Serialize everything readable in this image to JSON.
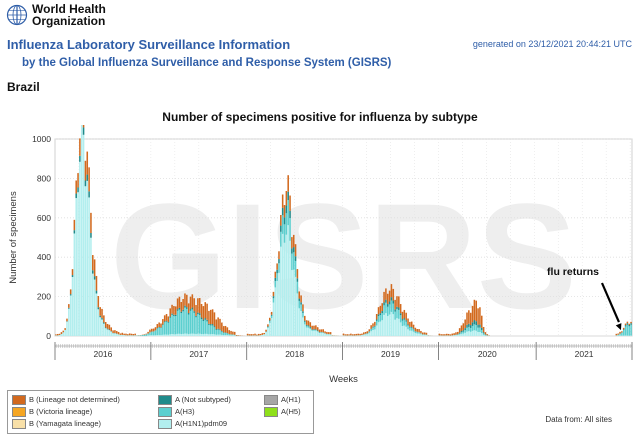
{
  "header": {
    "org_name_line1": "World Health",
    "org_name_line2": "Organization",
    "title": "Influenza Laboratory Surveillance Information",
    "subtitle": "by the Global Influenza Surveillance and Response System (GISRS)",
    "generated": "generated on 23/12/2021 20:44:21 UTC"
  },
  "country": "Brazil",
  "watermark": "GISRS",
  "annotation": {
    "text": "flu returns",
    "arrow": "pointing to the late-2021 peak"
  },
  "data_from": "Data from: All sites",
  "colors": {
    "b_lineage_not_determined": "#d2691e",
    "b_victoria": "#f5a623",
    "b_yamagata": "#f8e0a8",
    "a_not_subtyped": "#1f8a8a",
    "a_h3": "#5ccfcf",
    "a_h1n1pdm09": "#b2eeee",
    "a_h1": "#a6a6a6",
    "a_h5": "#8fe01a"
  },
  "legend": [
    {
      "label": "B (Lineage not determined)",
      "color": "#d2691e"
    },
    {
      "label": "B (Victoria lineage)",
      "color": "#f5a623"
    },
    {
      "label": "B (Yamagata lineage)",
      "color": "#f8e0a8"
    },
    {
      "label": "A (Not subtyped)",
      "color": "#1f8a8a"
    },
    {
      "label": "A(H3)",
      "color": "#5ccfcf"
    },
    {
      "label": "A(H1N1)pdm09",
      "color": "#b2eeee"
    },
    {
      "label": "A(H1)",
      "color": "#a6a6a6"
    },
    {
      "label": "A(H5)",
      "color": "#8fe01a"
    }
  ],
  "chart_data": {
    "type": "bar",
    "stacked": true,
    "title": "Number of specimens positive for influenza by subtype",
    "xlabel": "Weeks",
    "ylabel": "Number of specimens",
    "ylim": [
      0,
      1000
    ],
    "yticks": [
      0,
      200,
      400,
      600,
      800,
      1000
    ],
    "x_unit": "week index from start of 2016",
    "xlim": [
      0,
      313
    ],
    "year_labels": [
      {
        "label": "2016",
        "start": 0,
        "end": 52
      },
      {
        "label": "2017",
        "start": 52,
        "end": 104
      },
      {
        "label": "2018",
        "start": 104,
        "end": 156
      },
      {
        "label": "2019",
        "start": 156,
        "end": 208
      },
      {
        "label": "2020",
        "start": 208,
        "end": 261
      },
      {
        "label": "2021",
        "start": 261,
        "end": 313
      }
    ],
    "grid": true,
    "legend_position": "bottom-left",
    "annotation": {
      "text": "flu returns",
      "week": 307,
      "value": 30
    },
    "series_order": [
      "A(H1N1)pdm09",
      "A(H3)",
      "A (Not subtyped)",
      "B (Lineage not determined)"
    ],
    "peaks": [
      {
        "center": 14,
        "width": 3.5,
        "A(H1N1)pdm09": 840,
        "A(H3)": 0,
        "A (Not subtyped)": 25,
        "B (Lineage not determined)": 55
      },
      {
        "center": 18,
        "width": 4,
        "A(H1N1)pdm09": 140,
        "A(H3)": 0,
        "A (Not subtyped)": 10,
        "B (Lineage not determined)": 50
      },
      {
        "center": 22,
        "width": 6,
        "A(H1N1)pdm09": 40,
        "A(H3)": 0,
        "A (Not subtyped)": 5,
        "B (Lineage not determined)": 25
      },
      {
        "center": 70,
        "width": 9,
        "A(H1N1)pdm09": 8,
        "A(H3)": 115,
        "A (Not subtyped)": 8,
        "B (Lineage not determined)": 45
      },
      {
        "center": 84,
        "width": 6,
        "A(H1N1)pdm09": 4,
        "A(H3)": 10,
        "A (Not subtyped)": 4,
        "B (Lineage not determined)": 50
      },
      {
        "center": 121,
        "width": 3,
        "A(H1N1)pdm09": 240,
        "A(H3)": 30,
        "A (Not subtyped)": 15,
        "B (Lineage not determined)": 20
      },
      {
        "center": 125,
        "width": 2.5,
        "A(H1N1)pdm09": 320,
        "A(H3)": 70,
        "A (Not subtyped)": 25,
        "B (Lineage not determined)": 40
      },
      {
        "center": 129,
        "width": 3,
        "A(H1N1)pdm09": 200,
        "A(H3)": 60,
        "A (Not subtyped)": 15,
        "B (Lineage not determined)": 30
      },
      {
        "center": 135,
        "width": 7,
        "A(H1N1)pdm09": 30,
        "A(H3)": 5,
        "A (Not subtyped)": 4,
        "B (Lineage not determined)": 15
      },
      {
        "center": 180,
        "width": 5,
        "A(H1N1)pdm09": 90,
        "A(H3)": 40,
        "A (Not subtyped)": 12,
        "B (Lineage not determined)": 35
      },
      {
        "center": 187,
        "width": 6,
        "A(H1N1)pdm09": 30,
        "A(H3)": 20,
        "A (Not subtyped)": 5,
        "B (Lineage not determined)": 25
      },
      {
        "center": 225,
        "width": 3.5,
        "A(H1N1)pdm09": 20,
        "A(H3)": 20,
        "A (Not subtyped)": 15,
        "B (Lineage not determined)": 55
      },
      {
        "center": 229,
        "width": 2,
        "A(H1N1)pdm09": 10,
        "A(H3)": 15,
        "A (Not subtyped)": 10,
        "B (Lineage not determined)": 60
      },
      {
        "center": 311,
        "width": 2.5,
        "A(H1N1)pdm09": 0,
        "A(H3)": 55,
        "A (Not subtyped)": 8,
        "B (Lineage not determined)": 0
      }
    ],
    "active_ranges": [
      [
        0,
        44
      ],
      [
        50,
        98
      ],
      [
        104,
        150
      ],
      [
        156,
        202
      ],
      [
        208,
        232
      ],
      [
        304,
        313
      ]
    ],
    "baseline": 8
  }
}
